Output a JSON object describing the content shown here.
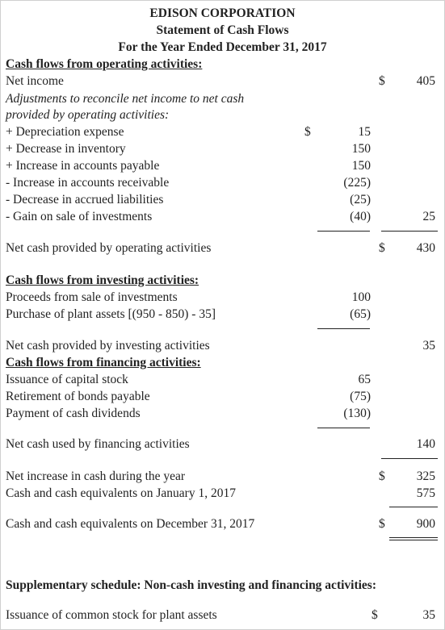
{
  "header": {
    "company": "EDISON CORPORATION",
    "statement": "Statement of Cash Flows",
    "period": "For the Year Ended December 31, 2017"
  },
  "operating": {
    "heading": "Cash flows from operating activities:",
    "net_income_label": "Net income",
    "net_income_dollar": "$",
    "net_income_value": "405",
    "adjust_line1": "Adjustments to reconcile net income to net cash",
    "adjust_line2": "provided by operating activities:",
    "depreciation_dollar": "$",
    "items": [
      {
        "label": "+ Depreciation expense",
        "value": "15"
      },
      {
        "label": "+ Decrease in inventory",
        "value": "150"
      },
      {
        "label": "+ Increase in accounts payable",
        "value": "150"
      },
      {
        "label": "- Increase in accounts receivable",
        "value": "(225)"
      },
      {
        "label": "- Decrease in accrued liabilities",
        "value": "(25)"
      },
      {
        "label": "- Gain on sale of investments",
        "value": "(40)"
      }
    ],
    "adjust_total": "25",
    "net_label": "Net cash provided by operating activities",
    "net_dollar": "$",
    "net_value": "430"
  },
  "investing": {
    "heading": "Cash flows from investing activities:",
    "items": [
      {
        "label": "Proceeds from sale of investments",
        "value": "100"
      },
      {
        "label": "Purchase of plant assets [(950 - 850) - 35]",
        "value": "(65)"
      }
    ],
    "net_label": "Net cash provided by investing activities",
    "net_value": "35"
  },
  "financing": {
    "heading": "Cash flows from financing activities:",
    "items": [
      {
        "label": "Issuance of capital stock",
        "value": "65"
      },
      {
        "label": "Retirement of bonds payable",
        "value": "(75)"
      },
      {
        "label": "Payment of cash dividends",
        "value": "(130)"
      }
    ],
    "net_label": "Net cash used by financing activities",
    "net_value": "140"
  },
  "summary": {
    "increase_label": "Net increase in cash during the year",
    "increase_dollar": "$",
    "increase_value": "325",
    "begin_label": "Cash and cash equivalents on January 1, 2017",
    "begin_value": "575",
    "end_label": "Cash and cash equivalents on December 31, 2017",
    "end_dollar": "$",
    "end_value": "900"
  },
  "supplementary": {
    "heading": "Supplementary schedule: Non-cash investing and financing activities:",
    "label": "Issuance of common stock for plant assets",
    "dollar": "$",
    "value": "35"
  }
}
